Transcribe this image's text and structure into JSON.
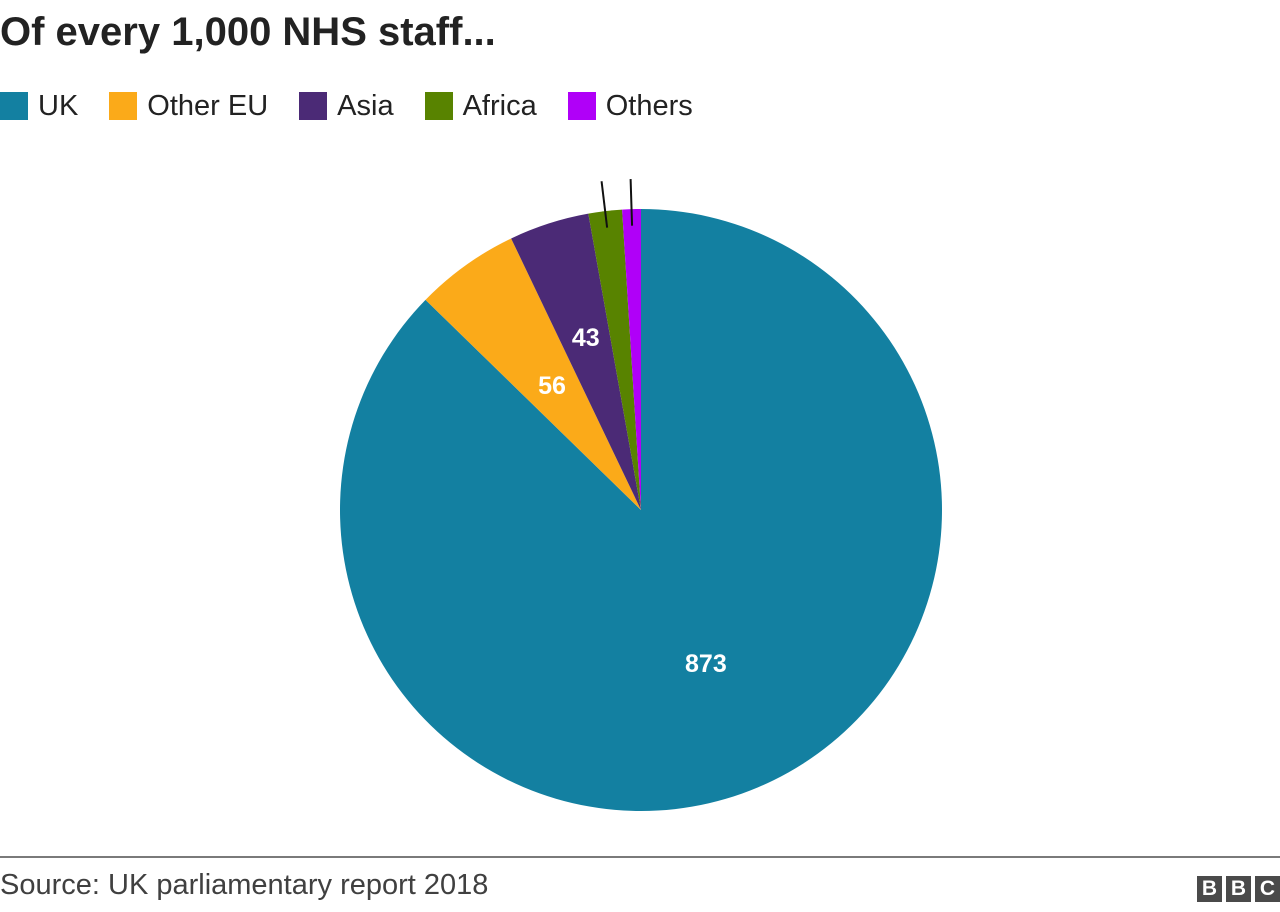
{
  "title": "Of every 1,000 NHS staff...",
  "source": "Source: UK parliamentary report 2018",
  "logo_text": [
    "B",
    "B",
    "C"
  ],
  "legend": [
    {
      "label": "UK",
      "color": "#1380a1"
    },
    {
      "label": "Other EU",
      "color": "#fbaa19"
    },
    {
      "label": "Asia",
      "color": "#4b2a76"
    },
    {
      "label": "Africa",
      "color": "#588300"
    },
    {
      "label": "Others",
      "color": "#b000f8"
    }
  ],
  "chart_data": {
    "type": "pie",
    "title": "Of every 1,000 NHS staff...",
    "categories": [
      "UK",
      "Other EU",
      "Asia",
      "Africa",
      "Others"
    ],
    "values": [
      873,
      56,
      43,
      18,
      10
    ],
    "data_labels": [
      "873",
      "56",
      "43",
      "",
      ""
    ],
    "colors": [
      "#1380a1",
      "#fbaa19",
      "#4b2a76",
      "#588300",
      "#b000f8"
    ],
    "start_angle": "12 o'clock",
    "direction": "clockwise",
    "legend_position": "top-left"
  }
}
